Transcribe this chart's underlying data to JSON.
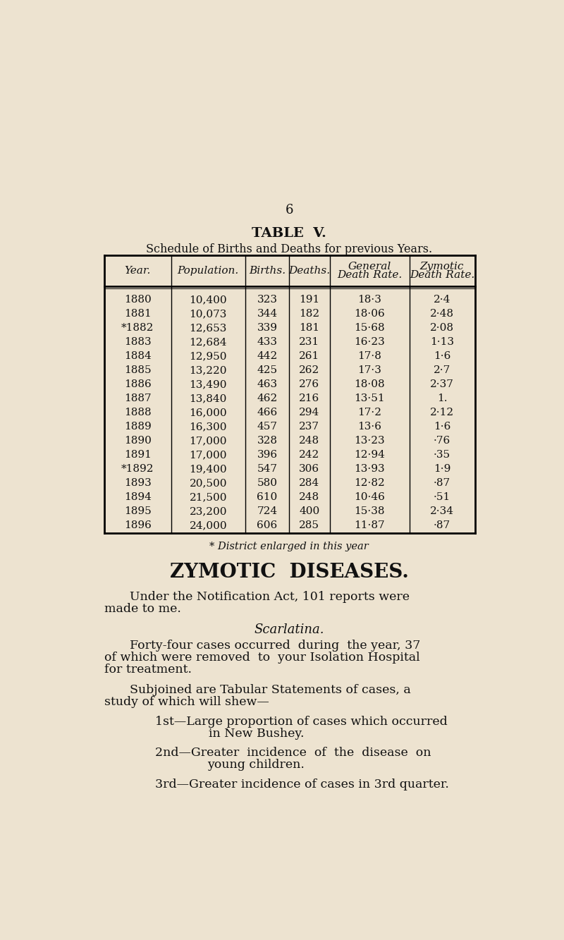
{
  "background_color": "#ede3d0",
  "page_number": "6",
  "table_title": "TABLE  V.",
  "table_subtitle": "Schedule of Births and Deaths for previous Years.",
  "col_headers": [
    "Year.",
    "Population.",
    "Births.",
    "Deaths.",
    "General\nDeath Rate.",
    "Zymotic\nDeath Rate."
  ],
  "rows": [
    [
      "1880",
      "10,400",
      "323",
      "191",
      "18·3",
      "2·4"
    ],
    [
      "1881",
      "10,073",
      "344",
      "182",
      "18·06",
      "2·48"
    ],
    [
      "*1882",
      "12,653",
      "339",
      "181",
      "15·68",
      "2·08"
    ],
    [
      "1883",
      "12,684",
      "433",
      "231",
      "16·23",
      "1·13"
    ],
    [
      "1884",
      "12,950",
      "442",
      "261",
      "17·8",
      "1·6"
    ],
    [
      "1885",
      "13,220",
      "425",
      "262",
      "17·3",
      "2·7"
    ],
    [
      "1886",
      "13,490",
      "463",
      "276",
      "18·08",
      "2·37"
    ],
    [
      "1887",
      "13,840",
      "462",
      "216",
      "13·51",
      "1."
    ],
    [
      "1888",
      "16,000",
      "466",
      "294",
      "17·2",
      "2·12"
    ],
    [
      "1889",
      "16,300",
      "457",
      "237",
      "13·6",
      "1·6"
    ],
    [
      "1890",
      "17,000",
      "328",
      "248",
      "13·23",
      "·76"
    ],
    [
      "1891",
      "17,000",
      "396",
      "242",
      "12·94",
      "·35"
    ],
    [
      "*1892",
      "19,400",
      "547",
      "306",
      "13·93",
      "1·9"
    ],
    [
      "1893",
      "20,500",
      "580",
      "284",
      "12·82",
      "·87"
    ],
    [
      "1894",
      "21,500",
      "610",
      "248",
      "10·46",
      "·51"
    ],
    [
      "1895",
      "23,200",
      "724",
      "400",
      "15·38",
      "2·34"
    ],
    [
      "1896",
      "24,000",
      "606",
      "285",
      "11·87",
      "·87"
    ]
  ],
  "footnote": "* District enlarged in this year",
  "section_title": "ZYMOTIC  DISEASES.",
  "para1a": "Under the Notification Act, 101 reports were",
  "para1b": "made to me.",
  "scarlatina_label": "Scarlatina.",
  "para2a": "Forty-four cases occurred  during  the year, 37",
  "para2b": "of which were removed  to  your Isolation Hospital",
  "para2c": "for treatment.",
  "para3a": "Subjoined are Tabular Statements of cases, a",
  "para3b": "study of which will shew—",
  "item1_line1": "1st—Large proportion of cases which occurred",
  "item1_line2": "in New Bushey.",
  "item2_line1": "2nd—Greater  incidence  of  the  disease  on",
  "item2_line2": "young children.",
  "item3": "3rd—Greater incidence of cases in 3rd quarter."
}
